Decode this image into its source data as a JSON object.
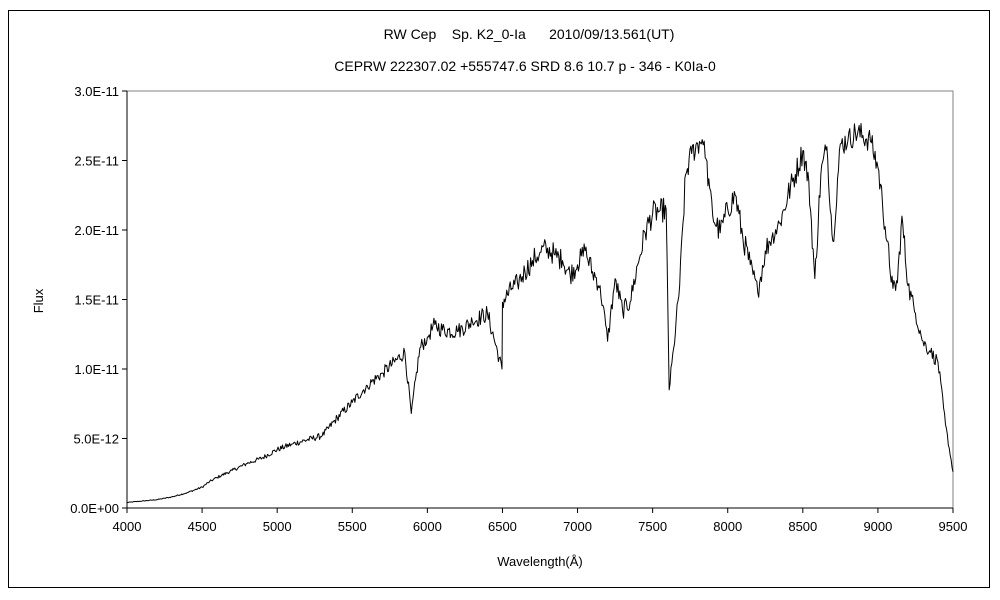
{
  "chart_data": {
    "type": "line",
    "title": "RW Cep    Sp. K2_0-Ia      2010/09/13.561(UT)",
    "subtitle": "CEPRW 222307.02 +555747.6 SRD 8.6 10.7 p - 346 - K0Ia-0",
    "xlabel": "Wavelength(Å)",
    "ylabel": "Flux",
    "xlim": [
      4000,
      9500
    ],
    "ylim": [
      0,
      3e-11
    ],
    "xticks": [
      4000,
      4500,
      5000,
      5500,
      6000,
      6500,
      7000,
      7500,
      8000,
      8500,
      9000,
      9500
    ],
    "xtick_labels": [
      "4000",
      "4500",
      "5000",
      "5500",
      "6000",
      "6500",
      "7000",
      "7500",
      "8000",
      "8500",
      "9000",
      "9500"
    ],
    "yticks": [
      0,
      5e-12,
      1e-11,
      1.5e-11,
      2e-11,
      2.5e-11,
      3e-11
    ],
    "ytick_labels": [
      "0.0E+00",
      "5.0E-12",
      "1.0E-11",
      "1.5E-11",
      "2.0E-11",
      "2.5E-11",
      "3.0E-11"
    ],
    "grid": false,
    "legend": "none",
    "series": [
      {
        "color": "#000000",
        "x": [
          4000,
          4100,
          4200,
          4300,
          4400,
          4500,
          4550,
          4600,
          4700,
          4800,
          4900,
          5000,
          5100,
          5200,
          5300,
          5400,
          5500,
          5600,
          5700,
          5800,
          5850,
          5893,
          5950,
          6000,
          6050,
          6100,
          6200,
          6300,
          6400,
          6497,
          6500,
          6563,
          6600,
          6650,
          6700,
          6750,
          6800,
          6850,
          6900,
          6950,
          7000,
          7050,
          7100,
          7150,
          7200,
          7250,
          7300,
          7350,
          7400,
          7450,
          7500,
          7550,
          7590,
          7610,
          7640,
          7680,
          7720,
          7760,
          7800,
          7830,
          7850,
          7880,
          7900,
          7950,
          8000,
          8050,
          8100,
          8150,
          8200,
          8250,
          8300,
          8350,
          8400,
          8450,
          8500,
          8540,
          8580,
          8620,
          8660,
          8700,
          8750,
          8800,
          8850,
          8900,
          8950,
          9000,
          9030,
          9060,
          9100,
          9130,
          9160,
          9200,
          9250,
          9300,
          9350,
          9400,
          9450,
          9500
        ],
        "y": [
          4e-13,
          5e-13,
          6e-13,
          8e-13,
          1.1e-12,
          1.5e-12,
          1.9e-12,
          2.2e-12,
          2.7e-12,
          3.2e-12,
          3.6e-12,
          4.2e-12,
          4.6e-12,
          4.9e-12,
          5.2e-12,
          6.5e-12,
          7.6e-12,
          8.8e-12,
          9.7e-12,
          1.07e-11,
          1.12e-11,
          6.8e-12,
          1.15e-11,
          1.23e-11,
          1.32e-11,
          1.28e-11,
          1.27e-11,
          1.34e-11,
          1.4e-11,
          1e-11,
          1.48e-11,
          1.58e-11,
          1.62e-11,
          1.7e-11,
          1.78e-11,
          1.84e-11,
          1.87e-11,
          1.82e-11,
          1.78e-11,
          1.68e-11,
          1.75e-11,
          1.85e-11,
          1.7e-11,
          1.6e-11,
          1.2e-11,
          1.65e-11,
          1.42e-11,
          1.48e-11,
          1.75e-11,
          1.98e-11,
          2.12e-11,
          2.14e-11,
          2.15e-11,
          8.5e-12,
          1.15e-11,
          1.6e-11,
          2.4e-11,
          2.55e-11,
          2.62e-11,
          2.65e-11,
          2.52e-11,
          2.3e-11,
          2.1e-11,
          1.98e-11,
          2.15e-11,
          2.25e-11,
          1.95e-11,
          1.75e-11,
          1.55e-11,
          1.85e-11,
          1.98e-11,
          2.05e-11,
          2.25e-11,
          2.4e-11,
          2.57e-11,
          2.35e-11,
          1.65e-11,
          2.4e-11,
          2.6e-11,
          1.92e-11,
          2.62e-11,
          2.64e-11,
          2.7e-11,
          2.68e-11,
          2.64e-11,
          2.45e-11,
          2.2e-11,
          1.92e-11,
          1.58e-11,
          1.62e-11,
          2.1e-11,
          1.6e-11,
          1.4e-11,
          1.2e-11,
          1.12e-11,
          1.05e-11,
          6e-12,
          2.6e-12
        ]
      }
    ]
  }
}
